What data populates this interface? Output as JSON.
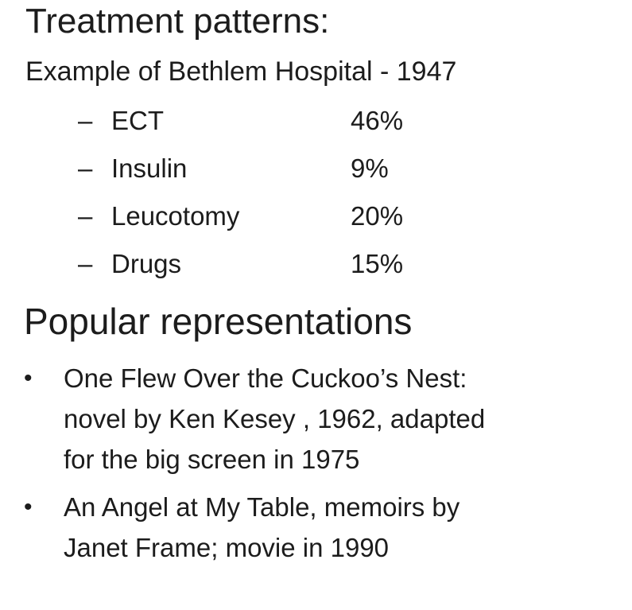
{
  "slide": {
    "title": "Treatment patterns:",
    "subtitle": "Example of Bethlem Hospital - 1947",
    "treatments": [
      {
        "dash": "–",
        "name": "ECT",
        "percent": "46%"
      },
      {
        "dash": "–",
        "name": "Insulin",
        "percent": "9%"
      },
      {
        "dash": "–",
        "name": "Leucotomy",
        "percent": "20%"
      },
      {
        "dash": "–",
        "name": "Drugs",
        "percent": "15%"
      }
    ],
    "section_title": "Popular representations",
    "bullets": [
      {
        "marker": "•",
        "lines": [
          "One Flew Over the Cuckoo’s Nest:",
          "novel by Ken Kesey , 1962, adapted",
          "for the big screen in 1975"
        ]
      },
      {
        "marker": "•",
        "lines": [
          "An Angel at My Table, memoirs by",
          "Janet Frame; movie in 1990"
        ]
      }
    ]
  }
}
